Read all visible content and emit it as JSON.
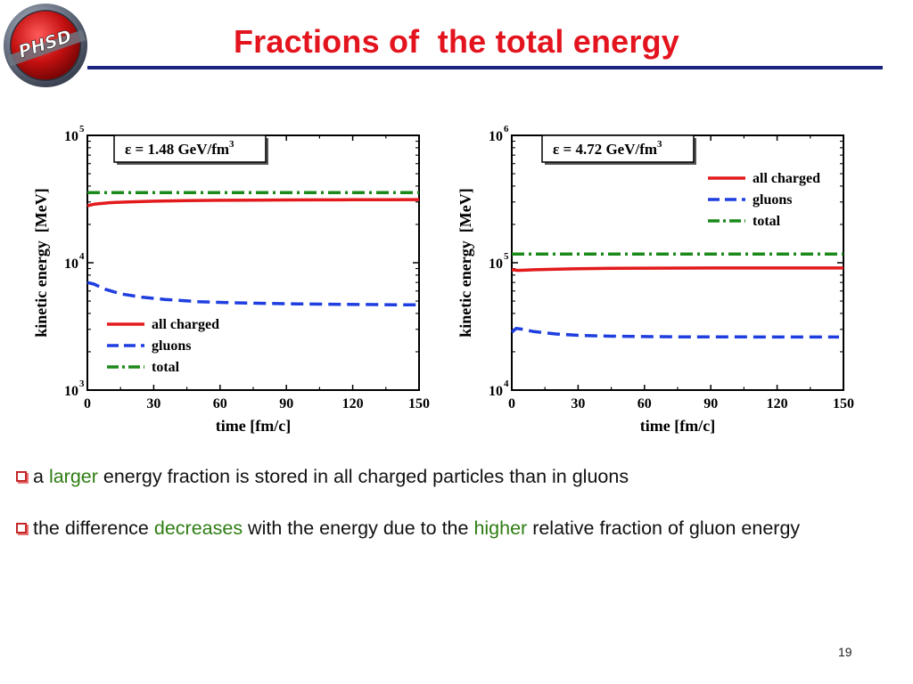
{
  "logo": {
    "text": "PHSD"
  },
  "slide": {
    "title": "Fractions of  the total energy",
    "page_number": "19"
  },
  "colors": {
    "title": "#e3141e",
    "rule": "#1a237e",
    "charged": "#e31a1c",
    "gluons": "#1f3ee0",
    "total": "#1b8a1b",
    "highlight": "#2e7d12"
  },
  "bullets": [
    {
      "pre": "a ",
      "hl": "larger",
      "post": " energy fraction is stored in all charged particles than in gluons"
    },
    {
      "pre": "the difference ",
      "hl": "decreases",
      "mid": " with the energy due to the ",
      "hl2": "higher",
      "post": " relative fraction of gluon energy"
    }
  ],
  "chart_data": [
    {
      "type": "line",
      "annotation": "ε = 1.48 GeV/fm3",
      "xlabel": "time [fm/c]",
      "ylabel": "kinetic energy  [MeV]",
      "xlim": [
        0,
        150
      ],
      "ylim": [
        1000,
        100000
      ],
      "y_scale": "log",
      "x_ticks": [
        0,
        30,
        60,
        90,
        120,
        150
      ],
      "y_ticks": [
        {
          "value": 1000,
          "base": "10",
          "exp": "3"
        },
        {
          "value": 10000,
          "base": "10",
          "exp": "4"
        },
        {
          "value": 100000,
          "base": "10",
          "exp": "5"
        }
      ],
      "legend_position": "bottom-left",
      "series": [
        {
          "name": "all charged",
          "style": "solid",
          "color": "#e31a1c",
          "x": [
            0,
            3,
            10,
            20,
            30,
            45,
            60,
            75,
            90,
            105,
            120,
            135,
            150
          ],
          "y": [
            28000,
            28800,
            29600,
            30100,
            30400,
            30700,
            30900,
            31000,
            31100,
            31150,
            31200,
            31250,
            31300
          ]
        },
        {
          "name": "gluons",
          "style": "dashed",
          "color": "#1f3ee0",
          "x": [
            0,
            3,
            8,
            15,
            25,
            35,
            50,
            65,
            80,
            95,
            110,
            125,
            140,
            150
          ],
          "y": [
            7000,
            6800,
            6200,
            5700,
            5350,
            5150,
            4950,
            4850,
            4800,
            4750,
            4720,
            4700,
            4680,
            4670
          ]
        },
        {
          "name": "total",
          "style": "dashdot",
          "color": "#1b8a1b",
          "x": [
            0,
            150
          ],
          "y": [
            35500,
            35500
          ]
        }
      ]
    },
    {
      "type": "line",
      "annotation": "ε = 4.72 GeV/fm3",
      "xlabel": "time [fm/c]",
      "ylabel": "kinetic energy  [MeV]",
      "xlim": [
        0,
        150
      ],
      "ylim": [
        10000,
        1000000
      ],
      "y_scale": "log",
      "x_ticks": [
        0,
        30,
        60,
        90,
        120,
        150
      ],
      "y_ticks": [
        {
          "value": 10000,
          "base": "10",
          "exp": "4"
        },
        {
          "value": 100000,
          "base": "10",
          "exp": "5"
        },
        {
          "value": 1000000,
          "base": "10",
          "exp": "6"
        }
      ],
      "legend_position": "top-right",
      "series": [
        {
          "name": "all charged",
          "style": "solid",
          "color": "#e31a1c",
          "x": [
            0,
            3,
            10,
            20,
            30,
            45,
            60,
            75,
            90,
            105,
            120,
            135,
            150
          ],
          "y": [
            88000,
            87000,
            88000,
            89000,
            89800,
            90300,
            90600,
            90800,
            90900,
            91000,
            91000,
            91000,
            91000
          ]
        },
        {
          "name": "gluons",
          "style": "dashed",
          "color": "#1f3ee0",
          "x": [
            0,
            2,
            5,
            10,
            20,
            30,
            45,
            60,
            75,
            90,
            105,
            120,
            135,
            148
          ],
          "y": [
            28500,
            30500,
            30000,
            28800,
            27600,
            26900,
            26500,
            26300,
            26200,
            26200,
            26150,
            26100,
            26100,
            26100
          ]
        },
        {
          "name": "total",
          "style": "dashdot",
          "color": "#1b8a1b",
          "x": [
            0,
            150
          ],
          "y": [
            117000,
            117000
          ]
        }
      ]
    }
  ]
}
